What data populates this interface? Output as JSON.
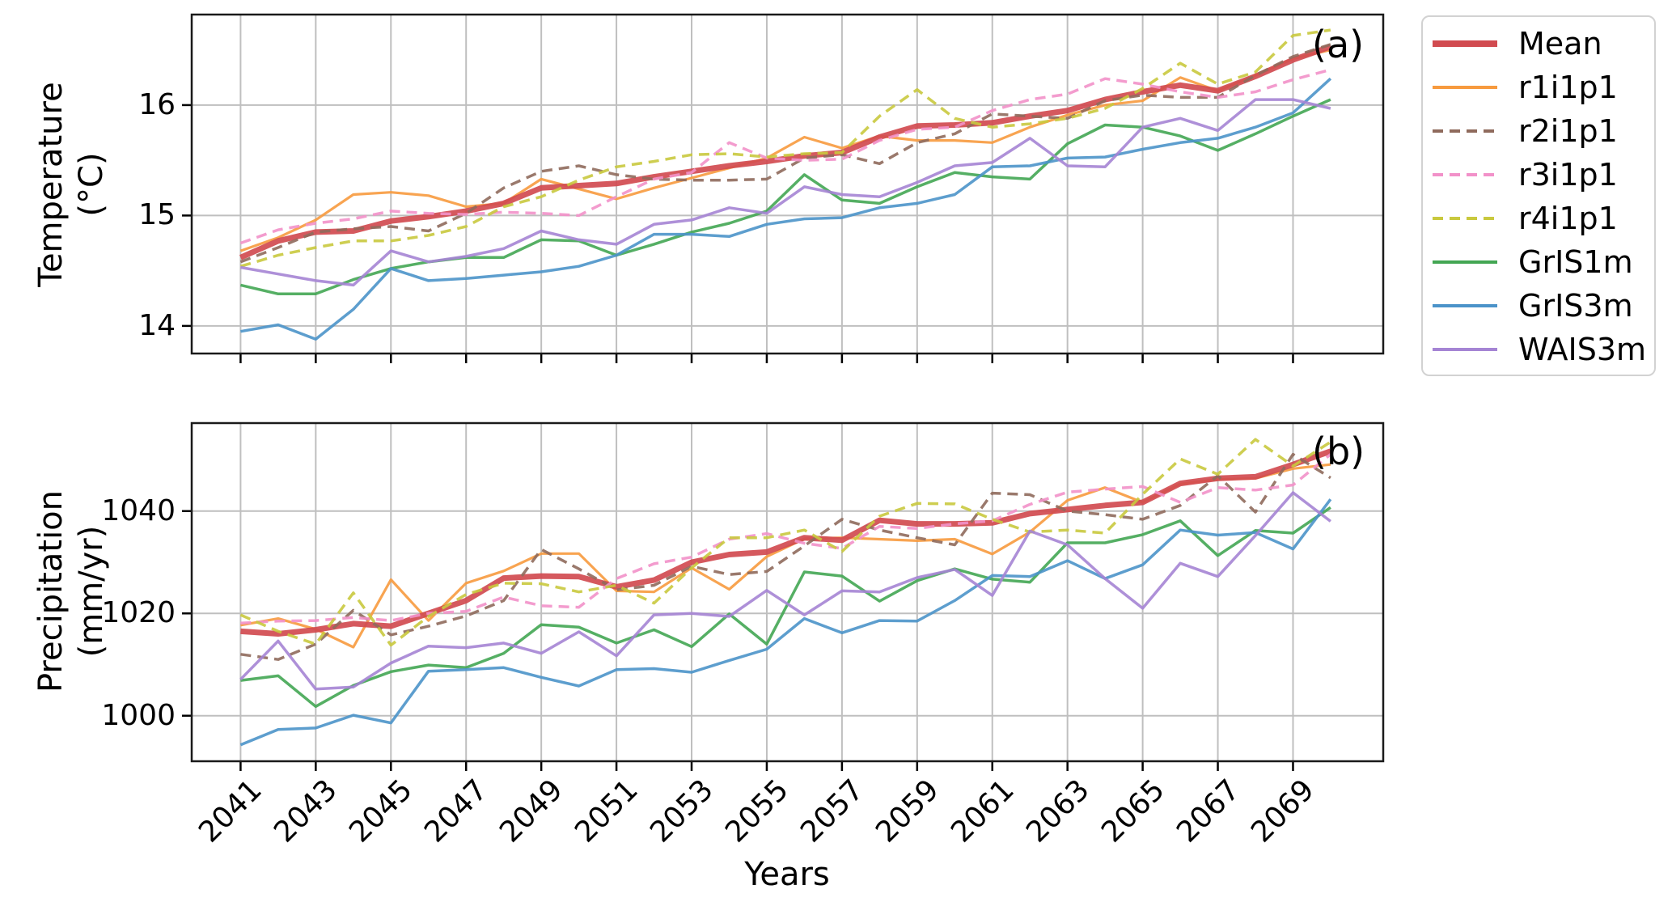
{
  "figure": {
    "background": "#ffffff"
  },
  "legend": {
    "position": "upper-right-outside"
  },
  "chart_data": [
    {
      "type": "line",
      "panel_label": "(a)",
      "ylabel": "Temperature\n(°C)",
      "xlabel": "",
      "grid": true,
      "legend_position": "outside-upper-right",
      "x": [
        2041,
        2042,
        2043,
        2044,
        2045,
        2046,
        2047,
        2048,
        2049,
        2050,
        2051,
        2052,
        2053,
        2054,
        2055,
        2056,
        2057,
        2058,
        2059,
        2060,
        2061,
        2062,
        2063,
        2064,
        2065,
        2066,
        2067,
        2068,
        2069,
        2070
      ],
      "xlim": [
        2039.7,
        2071.4
      ],
      "ylim": [
        13.75,
        16.82
      ],
      "xticks": [
        2041,
        2043,
        2045,
        2047,
        2049,
        2051,
        2053,
        2055,
        2057,
        2059,
        2061,
        2063,
        2065,
        2067,
        2069
      ],
      "yticks": [
        14,
        15,
        16
      ],
      "series": [
        {
          "name": "Mean",
          "color": "#d14b50",
          "dash": "solid",
          "width": 7,
          "values": [
            14.62,
            14.77,
            14.85,
            14.86,
            14.95,
            14.99,
            15.04,
            15.11,
            15.25,
            15.27,
            15.29,
            15.35,
            15.4,
            15.45,
            15.49,
            15.54,
            15.57,
            15.71,
            15.81,
            15.82,
            15.84,
            15.9,
            15.95,
            16.05,
            16.12,
            16.18,
            16.13,
            16.26,
            16.41,
            16.53
          ]
        },
        {
          "name": "r1i1p1",
          "color": "#f79a3e",
          "dash": "solid",
          "width": 3.2,
          "values": [
            14.68,
            14.8,
            14.96,
            15.19,
            15.21,
            15.18,
            15.08,
            15.11,
            15.33,
            15.24,
            15.15,
            15.25,
            15.34,
            15.43,
            15.52,
            15.71,
            15.61,
            15.72,
            15.68,
            15.68,
            15.66,
            15.8,
            15.91,
            16.0,
            16.04,
            16.25,
            16.13,
            16.27,
            16.42,
            16.5
          ]
        },
        {
          "name": "r2i1p1",
          "color": "#8f6a5c",
          "dash": "dashed",
          "width": 3.5,
          "values": [
            14.58,
            14.71,
            14.85,
            14.88,
            14.9,
            14.86,
            15.02,
            15.25,
            15.4,
            15.45,
            15.37,
            15.33,
            15.32,
            15.32,
            15.33,
            15.52,
            15.55,
            15.47,
            15.66,
            15.74,
            15.92,
            15.9,
            15.88,
            16.04,
            16.09,
            16.07,
            16.07,
            16.27,
            16.44,
            16.55
          ]
        },
        {
          "name": "r3i1p1",
          "color": "#f291c9",
          "dash": "dashed",
          "width": 3.5,
          "values": [
            14.75,
            14.87,
            14.93,
            14.97,
            15.04,
            15.02,
            15.01,
            15.03,
            15.02,
            15.0,
            15.17,
            15.33,
            15.39,
            15.66,
            15.52,
            15.5,
            15.51,
            15.68,
            15.78,
            15.8,
            15.95,
            16.05,
            16.1,
            16.24,
            16.19,
            16.12,
            16.07,
            16.12,
            16.23,
            16.32
          ]
        },
        {
          "name": "r4i1p1",
          "color": "#c9c93e",
          "dash": "dashed",
          "width": 3.5,
          "values": [
            14.54,
            14.64,
            14.71,
            14.77,
            14.77,
            14.82,
            14.9,
            15.08,
            15.17,
            15.32,
            15.44,
            15.49,
            15.55,
            15.56,
            15.53,
            15.56,
            15.57,
            15.9,
            16.14,
            15.88,
            15.8,
            15.83,
            15.88,
            15.97,
            16.15,
            16.38,
            16.19,
            16.3,
            16.63,
            16.68
          ]
        },
        {
          "name": "GrIS1m",
          "color": "#43a653",
          "dash": "solid",
          "width": 3.5,
          "values": [
            14.37,
            14.29,
            14.29,
            14.42,
            14.52,
            14.58,
            14.62,
            14.62,
            14.78,
            14.77,
            14.64,
            14.74,
            14.85,
            14.93,
            15.04,
            15.37,
            15.14,
            15.11,
            15.26,
            15.39,
            15.35,
            15.33,
            15.65,
            15.82,
            15.8,
            15.72,
            15.59,
            15.74,
            15.9,
            16.05
          ]
        },
        {
          "name": "GrIS3m",
          "color": "#4b93c9",
          "dash": "solid",
          "width": 3.5,
          "values": [
            13.95,
            14.01,
            13.88,
            14.15,
            14.52,
            14.41,
            14.43,
            14.46,
            14.49,
            14.54,
            14.64,
            14.83,
            14.83,
            14.81,
            14.92,
            14.97,
            14.98,
            15.07,
            15.11,
            15.19,
            15.44,
            15.45,
            15.52,
            15.53,
            15.6,
            15.66,
            15.7,
            15.8,
            15.93,
            16.24
          ]
        },
        {
          "name": "WAIS3m",
          "color": "#a584d4",
          "dash": "solid",
          "width": 3.5,
          "values": [
            14.53,
            14.47,
            14.41,
            14.37,
            14.68,
            14.58,
            14.63,
            14.7,
            14.86,
            14.78,
            14.74,
            14.92,
            14.96,
            15.07,
            15.02,
            15.26,
            15.19,
            15.17,
            15.3,
            15.45,
            15.48,
            15.7,
            15.45,
            15.44,
            15.8,
            15.88,
            15.77,
            16.05,
            16.05,
            15.97
          ]
        }
      ]
    },
    {
      "type": "line",
      "panel_label": "(b)",
      "ylabel": "Precipitation\n(mm/yr)",
      "xlabel": "Years",
      "grid": true,
      "x": [
        2041,
        2042,
        2043,
        2044,
        2045,
        2046,
        2047,
        2048,
        2049,
        2050,
        2051,
        2052,
        2053,
        2054,
        2055,
        2056,
        2057,
        2058,
        2059,
        2060,
        2061,
        2062,
        2063,
        2064,
        2065,
        2066,
        2067,
        2068,
        2069,
        2070
      ],
      "xlim": [
        2039.7,
        2071.4
      ],
      "ylim": [
        991.1,
        1057.2
      ],
      "xticks": [
        2041,
        2043,
        2045,
        2047,
        2049,
        2051,
        2053,
        2055,
        2057,
        2059,
        2061,
        2063,
        2065,
        2067,
        2069
      ],
      "yticks": [
        1000,
        1020,
        1040
      ],
      "series": [
        {
          "name": "Mean",
          "color": "#d14b50",
          "dash": "solid",
          "width": 7,
          "values": [
            1016.5,
            1016.0,
            1016.8,
            1018.0,
            1017.5,
            1020.0,
            1022.5,
            1026.9,
            1027.3,
            1027.2,
            1025.2,
            1026.5,
            1030.0,
            1031.5,
            1032.0,
            1034.8,
            1034.3,
            1038.2,
            1037.5,
            1037.5,
            1037.7,
            1039.5,
            1040.3,
            1041.1,
            1041.7,
            1045.4,
            1046.4,
            1046.7,
            1049.1,
            1051.7
          ]
        },
        {
          "name": "r1i1p1",
          "color": "#f79a3e",
          "dash": "solid",
          "width": 3.2,
          "values": [
            1017.7,
            1019.0,
            1016.9,
            1013.4,
            1026.6,
            1018.6,
            1025.9,
            1028.3,
            1031.7,
            1031.7,
            1024.4,
            1024.2,
            1028.9,
            1024.7,
            1031.1,
            1034.6,
            1034.8,
            1034.5,
            1034.2,
            1034.5,
            1031.6,
            1035.9,
            1042.1,
            1044.6,
            1041.7,
            1045.3,
            1046.2,
            1046.4,
            1048.3,
            1049.1
          ]
        },
        {
          "name": "r2i1p1",
          "color": "#8f6a5c",
          "dash": "dashed",
          "width": 3.5,
          "values": [
            1012.0,
            1011.0,
            1014.0,
            1020.6,
            1015.8,
            1017.5,
            1019.5,
            1022.5,
            1032.5,
            1028.7,
            1024.6,
            1025.5,
            1029.2,
            1027.6,
            1028.2,
            1033.2,
            1038.4,
            1036.3,
            1034.8,
            1033.4,
            1043.5,
            1043.2,
            1040.0,
            1039.3,
            1038.4,
            1041.1,
            1046.9,
            1039.8,
            1051.1,
            1046.5
          ]
        },
        {
          "name": "r3i1p1",
          "color": "#f291c9",
          "dash": "dashed",
          "width": 3.5,
          "values": [
            1018.1,
            1018.5,
            1018.6,
            1019.2,
            1018.6,
            1020.0,
            1020.4,
            1023.2,
            1021.5,
            1021.2,
            1026.8,
            1029.7,
            1031.0,
            1034.5,
            1035.6,
            1033.7,
            1032.7,
            1037.0,
            1036.6,
            1037.5,
            1038.1,
            1041.3,
            1043.7,
            1044.3,
            1044.8,
            1041.7,
            1044.6,
            1044.1,
            1045.1,
            1051.1
          ]
        },
        {
          "name": "r4i1p1",
          "color": "#c9c93e",
          "dash": "dashed",
          "width": 3.5,
          "values": [
            1019.7,
            1016.5,
            1014.0,
            1024.0,
            1013.8,
            1019.4,
            1023.7,
            1025.9,
            1025.8,
            1024.2,
            1025.5,
            1022.0,
            1028.9,
            1034.8,
            1034.8,
            1036.3,
            1032.1,
            1039.0,
            1041.5,
            1041.4,
            1038.4,
            1035.9,
            1036.3,
            1035.7,
            1043.3,
            1050.2,
            1047.2,
            1054.0,
            1048.8,
            1053.5
          ]
        },
        {
          "name": "GrIS1m",
          "color": "#43a653",
          "dash": "solid",
          "width": 3.5,
          "values": [
            1006.9,
            1007.8,
            1001.8,
            1005.9,
            1008.6,
            1009.9,
            1009.4,
            1012.2,
            1017.8,
            1017.3,
            1014.2,
            1016.8,
            1013.5,
            1019.9,
            1014.0,
            1028.1,
            1027.3,
            1022.4,
            1026.4,
            1028.7,
            1026.7,
            1026.1,
            1033.8,
            1033.8,
            1035.4,
            1038.1,
            1031.3,
            1036.2,
            1035.7,
            1040.7
          ]
        },
        {
          "name": "GrIS3m",
          "color": "#4b93c9",
          "dash": "solid",
          "width": 3.5,
          "values": [
            994.3,
            997.3,
            997.6,
            1000.1,
            998.6,
            1008.7,
            1009.0,
            1009.4,
            1007.5,
            1005.8,
            1009.0,
            1009.2,
            1008.5,
            1010.8,
            1013.0,
            1019.0,
            1016.2,
            1018.6,
            1018.5,
            1022.5,
            1027.4,
            1027.2,
            1030.3,
            1026.8,
            1029.5,
            1036.3,
            1035.3,
            1035.8,
            1032.6,
            1042.3
          ]
        },
        {
          "name": "WAIS3m",
          "color": "#a584d4",
          "dash": "solid",
          "width": 3.5,
          "values": [
            1007.1,
            1014.6,
            1005.2,
            1005.6,
            1010.3,
            1013.6,
            1013.3,
            1014.2,
            1012.2,
            1016.4,
            1011.7,
            1019.7,
            1020.0,
            1019.4,
            1024.5,
            1019.7,
            1024.4,
            1024.2,
            1027.0,
            1028.6,
            1023.5,
            1036.1,
            1033.4,
            1026.8,
            1021.0,
            1029.8,
            1027.2,
            1035.2,
            1043.6,
            1038.0
          ]
        }
      ]
    }
  ]
}
